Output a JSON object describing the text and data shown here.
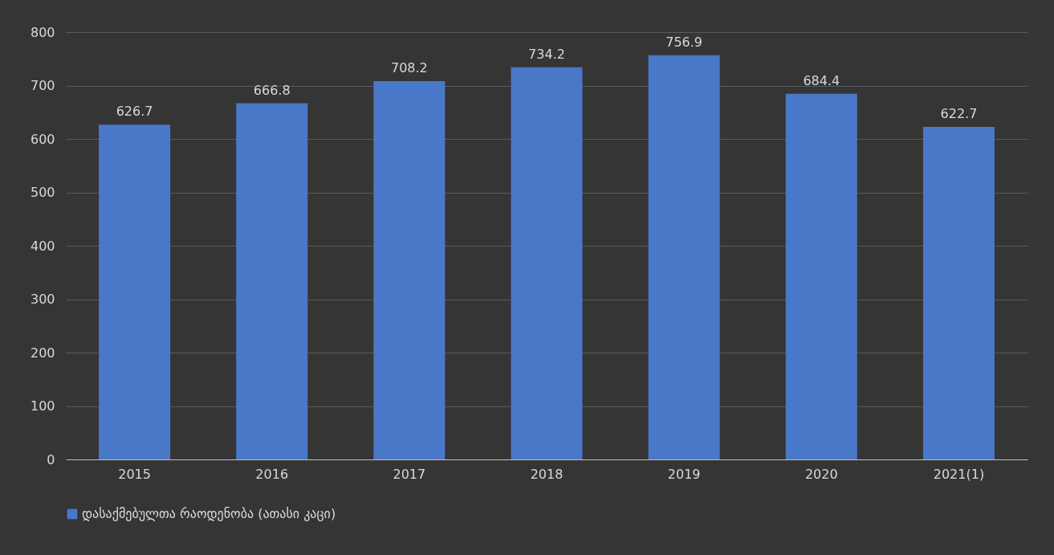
{
  "chart_data": {
    "type": "bar",
    "categories": [
      "2015",
      "2016",
      "2017",
      "2018",
      "2019",
      "2020",
      "2021(1)"
    ],
    "series": [
      {
        "name": "დასაქმებულთა რაოდენობა (ათასი კაცი)",
        "color": "#4a78c8",
        "values": [
          626.7,
          666.8,
          708.2,
          734.2,
          756.9,
          684.4,
          622.7
        ]
      }
    ],
    "ylim": [
      0,
      800
    ],
    "yticks": [
      0,
      100,
      200,
      300,
      400,
      500,
      600,
      700,
      800
    ],
    "grid": "y",
    "legend": "bottom",
    "data_labels": true
  }
}
